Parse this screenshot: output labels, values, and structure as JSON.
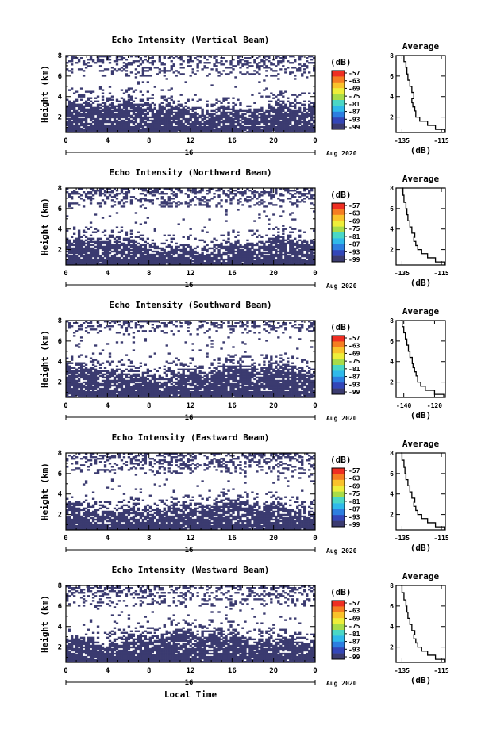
{
  "chart_data": [
    {
      "type": "heatmap",
      "title": "Echo Intensity (Vertical Beam)",
      "ylabel": "Height (km)",
      "ylim": [
        0.5,
        8
      ],
      "yticks": [
        "2",
        "4",
        "6",
        "8"
      ],
      "xticks": [
        "0",
        "4",
        "8",
        "12",
        "16",
        "20",
        "0"
      ],
      "xlim": [
        0,
        24
      ],
      "date_day": "16",
      "date_label": "Aug 2020",
      "colorbar_unit": "(dB)",
      "colorbar_ticks": [
        "-57",
        "-63",
        "-69",
        "-75",
        "-81",
        "-87",
        "-93",
        "-99"
      ],
      "echo_top_km": 3.3,
      "upper_echo_km": [
        6.0,
        8.0
      ],
      "profile": {
        "title": "Average",
        "xlabel": "(dB)",
        "xticks": [
          "-135",
          "-115"
        ],
        "yticks": [
          "2",
          "4",
          "6",
          "8"
        ],
        "xlim": [
          -138,
          -113
        ],
        "ylim": [
          0.5,
          8
        ],
        "x": [
          -113.5,
          -118,
          -122,
          -126,
          -128,
          -128.5,
          -129.5,
          -130,
          -129,
          -130,
          -131,
          -132,
          -132.5,
          -133,
          -134,
          -134.5
        ],
        "y": [
          0.5,
          0.8,
          1.2,
          1.6,
          2.0,
          2.6,
          3.0,
          3.4,
          3.8,
          4.4,
          5.0,
          5.6,
          6.2,
          6.8,
          7.4,
          8.0
        ]
      }
    },
    {
      "type": "heatmap",
      "title": "Echo Intensity (Northward Beam)",
      "ylabel": "Height (km)",
      "ylim": [
        0.5,
        8
      ],
      "yticks": [
        "2",
        "4",
        "6",
        "8"
      ],
      "xticks": [
        "0",
        "4",
        "8",
        "12",
        "16",
        "20",
        "0"
      ],
      "xlim": [
        0,
        24
      ],
      "date_day": "16",
      "date_label": "Aug 2020",
      "colorbar_unit": "(dB)",
      "colorbar_ticks": [
        "-57",
        "-63",
        "-69",
        "-75",
        "-81",
        "-87",
        "-93",
        "-99"
      ],
      "echo_top_km": 2.8,
      "upper_echo_km": [
        6.2,
        8.0
      ],
      "profile": {
        "title": "Average",
        "xlabel": "(dB)",
        "xticks": [
          "-135",
          "-115"
        ],
        "yticks": [
          "2",
          "4",
          "6",
          "8"
        ],
        "xlim": [
          -138,
          -113
        ],
        "ylim": [
          0.5,
          8
        ],
        "x": [
          -113.5,
          -118,
          -122,
          -125,
          -127,
          -128,
          -129,
          -128.5,
          -130,
          -131,
          -132,
          -132.5,
          -133,
          -134,
          -134.5,
          -135
        ],
        "y": [
          0.5,
          0.8,
          1.2,
          1.6,
          2.0,
          2.4,
          2.8,
          3.2,
          3.6,
          4.2,
          4.8,
          5.4,
          6.0,
          6.6,
          7.3,
          8.0
        ]
      }
    },
    {
      "type": "heatmap",
      "title": "Echo Intensity (Southward Beam)",
      "ylabel": "Height (km)",
      "ylim": [
        0.5,
        8
      ],
      "yticks": [
        "2",
        "4",
        "6",
        "8"
      ],
      "xticks": [
        "0",
        "4",
        "8",
        "12",
        "16",
        "20",
        "0"
      ],
      "xlim": [
        0,
        24
      ],
      "date_day": "16",
      "date_label": "Aug 2020",
      "colorbar_unit": "(dB)",
      "colorbar_ticks": [
        "-57",
        "-63",
        "-69",
        "-75",
        "-81",
        "-87",
        "-93",
        "-99"
      ],
      "echo_top_km": 3.4,
      "upper_echo_km": [
        6.8,
        8.0
      ],
      "profile": {
        "title": "Average",
        "xlabel": "(dB)",
        "xticks": [
          "-140",
          "-120"
        ],
        "yticks": [
          "2",
          "4",
          "6",
          "8"
        ],
        "xlim": [
          -145,
          -113
        ],
        "ylim": [
          0.5,
          8
        ],
        "x": [
          -114,
          -120,
          -126,
          -129,
          -131,
          -132,
          -133,
          -134,
          -134.5,
          -136,
          -137,
          -138,
          -139,
          -140,
          -141,
          -142
        ],
        "y": [
          0.5,
          0.8,
          1.2,
          1.6,
          2.0,
          2.6,
          3.0,
          3.4,
          3.8,
          4.4,
          5.0,
          5.6,
          6.2,
          6.8,
          7.4,
          8.0
        ]
      }
    },
    {
      "type": "heatmap",
      "title": "Echo Intensity (Eastward Beam)",
      "ylabel": "Height (km)",
      "ylim": [
        0.5,
        8
      ],
      "yticks": [
        "2",
        "4",
        "6",
        "8"
      ],
      "xticks": [
        "0",
        "4",
        "8",
        "12",
        "16",
        "20",
        "0"
      ],
      "xlim": [
        0,
        24
      ],
      "date_day": "16",
      "date_label": "Aug 2020",
      "colorbar_unit": "(dB)",
      "colorbar_ticks": [
        "-57",
        "-63",
        "-69",
        "-75",
        "-81",
        "-87",
        "-93",
        "-99"
      ],
      "echo_top_km": 3.0,
      "upper_echo_km": [
        6.0,
        8.0
      ],
      "profile": {
        "title": "Average",
        "xlabel": "(dB)",
        "xticks": [
          "-135",
          "-115"
        ],
        "yticks": [
          "2",
          "4",
          "6",
          "8"
        ],
        "xlim": [
          -138,
          -113
        ],
        "ylim": [
          0.5,
          8
        ],
        "x": [
          -113.5,
          -118,
          -122,
          -125,
          -127,
          -128,
          -129,
          -128.5,
          -130,
          -131,
          -132,
          -133,
          -133.5,
          -134,
          -135,
          -135.5
        ],
        "y": [
          0.5,
          0.8,
          1.2,
          1.6,
          2.0,
          2.4,
          2.8,
          3.2,
          3.6,
          4.2,
          4.8,
          5.4,
          6.0,
          6.6,
          7.3,
          8.0
        ]
      }
    },
    {
      "type": "heatmap",
      "title": "Echo Intensity (Westward Beam)",
      "ylabel": "Height (km)",
      "ylim": [
        0.5,
        8
      ],
      "yticks": [
        "2",
        "4",
        "6",
        "8"
      ],
      "xticks": [
        "0",
        "4",
        "8",
        "12",
        "16",
        "20",
        "0"
      ],
      "xlim": [
        0,
        24
      ],
      "date_day": "16",
      "date_label": "Aug 2020",
      "colorbar_unit": "(dB)",
      "colorbar_ticks": [
        "-57",
        "-63",
        "-69",
        "-75",
        "-81",
        "-87",
        "-93",
        "-99"
      ],
      "echo_top_km": 3.2,
      "upper_echo_km": [
        6.0,
        8.0
      ],
      "profile": {
        "title": "Average",
        "xlabel": "(dB)",
        "xticks": [
          "-135",
          "-115"
        ],
        "yticks": [
          "2",
          "4",
          "6",
          "8"
        ],
        "xlim": [
          -138,
          -113
        ],
        "ylim": [
          0.5,
          8
        ],
        "x": [
          -113.5,
          -118,
          -122,
          -125,
          -127,
          -128,
          -129,
          -128.5,
          -130,
          -131,
          -132,
          -132.5,
          -133,
          -134,
          -135,
          -135.5
        ],
        "y": [
          0.5,
          0.8,
          1.2,
          1.6,
          2.0,
          2.4,
          2.8,
          3.2,
          3.6,
          4.2,
          4.8,
          5.4,
          6.0,
          6.6,
          7.3,
          8.0
        ]
      }
    }
  ],
  "footer": {
    "xlabel": "Local Time"
  },
  "colors": {
    "echo": "#3b3b70",
    "colorbar": [
      "#ef2e22",
      "#f57d22",
      "#f9c22b",
      "#eeee3a",
      "#a8dc49",
      "#4ad7c6",
      "#2fb9ea",
      "#2d7ee0",
      "#3346b8",
      "#3b3b70"
    ]
  }
}
